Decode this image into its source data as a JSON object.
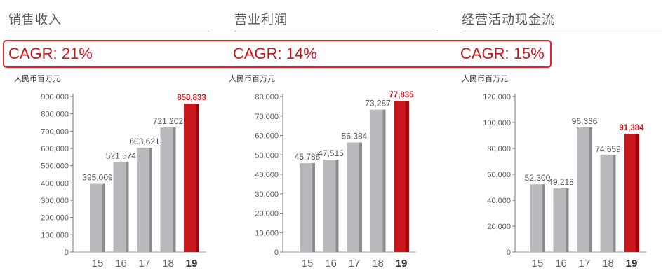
{
  "colors": {
    "accent": "#c8161d",
    "bar": "#b8b9bd",
    "bar_shade": "#8c8d91",
    "highlight": "#c8161d",
    "highlight_shade": "#8e0d12"
  },
  "chart_data": [
    {
      "type": "bar",
      "title": "销售收入",
      "cagr": "CAGR: 21%",
      "unit": "人民币百万元",
      "categories": [
        "15",
        "16",
        "17",
        "18",
        "19"
      ],
      "values": [
        395009,
        521574,
        603621,
        721202,
        858833
      ],
      "value_labels": [
        "395,009",
        "521,574",
        "603,621",
        "721,202",
        "858,833"
      ],
      "highlight_index": 4,
      "ylim": [
        0,
        900000
      ],
      "yticks": [
        0,
        100000,
        200000,
        300000,
        400000,
        500000,
        600000,
        700000,
        800000,
        900000
      ],
      "ytick_labels": [
        "0",
        "100,000",
        "200,000",
        "300,000",
        "400,000",
        "500,000",
        "600,000",
        "700,000",
        "800,000",
        "900,000"
      ]
    },
    {
      "type": "bar",
      "title": "营业利润",
      "cagr": "CAGR: 14%",
      "unit": "人民币百万元",
      "categories": [
        "15",
        "16",
        "17",
        "18",
        "19"
      ],
      "values": [
        45786,
        47515,
        56384,
        73287,
        77835
      ],
      "value_labels": [
        "45,786",
        "47,515",
        "56,384",
        "73,287",
        "77,835"
      ],
      "highlight_index": 4,
      "ylim": [
        0,
        80000
      ],
      "yticks": [
        0,
        10000,
        20000,
        30000,
        40000,
        50000,
        60000,
        70000,
        80000
      ],
      "ytick_labels": [
        "0",
        "10,000",
        "20,000",
        "30,000",
        "40,000",
        "50,000",
        "60,000",
        "70,000",
        "80,000"
      ]
    },
    {
      "type": "bar",
      "title": "经营活动现金流",
      "cagr": "CAGR: 15%",
      "unit": "人民币百万元",
      "categories": [
        "15",
        "16",
        "17",
        "18",
        "19"
      ],
      "values": [
        52300,
        49218,
        96336,
        74659,
        91384
      ],
      "value_labels": [
        "52,300",
        "49,218",
        "96,336",
        "74,659",
        "91,384"
      ],
      "highlight_index": 4,
      "ylim": [
        0,
        120000
      ],
      "yticks": [
        0,
        20000,
        40000,
        60000,
        80000,
        100000,
        120000
      ],
      "ytick_labels": [
        "0",
        "20,000",
        "40,000",
        "60,000",
        "80,000",
        "100,000",
        "120,000"
      ]
    }
  ]
}
